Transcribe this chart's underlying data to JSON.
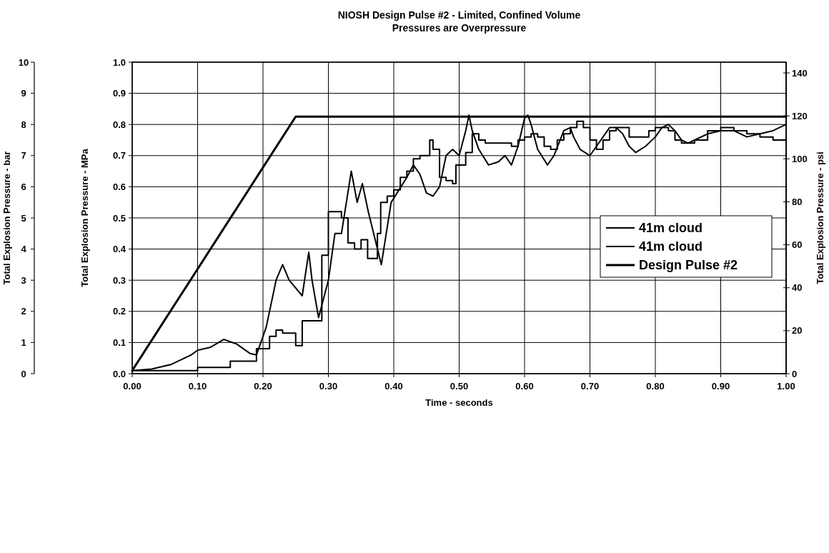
{
  "chart_data": {
    "type": "line",
    "title": "NIOSH Design Pulse #2 - Limited, Confined Volume",
    "subtitle": "Pressures are Overpressure",
    "xlabel": "Time - seconds",
    "ylabel": "Total Explosion Pressure - MPa",
    "y3label": "Total Explosion Pressure - psi",
    "y2label": "Total Explosion Pressure - bar",
    "xlim": [
      0,
      1
    ],
    "xticks": [
      {
        "value": 0,
        "label": "0.00"
      },
      {
        "value": 0.1,
        "label": "0.10"
      },
      {
        "value": 0.2,
        "label": "0.20"
      },
      {
        "value": 0.3,
        "label": "0.30"
      },
      {
        "value": 0.4,
        "label": "0.40"
      },
      {
        "value": 0.5,
        "label": "0.50"
      },
      {
        "value": 0.6,
        "label": "0.60"
      },
      {
        "value": 0.7,
        "label": "0.70"
      },
      {
        "value": 0.8,
        "label": "0.80"
      },
      {
        "value": 0.9,
        "label": "0.90"
      },
      {
        "value": 1,
        "label": "1.00"
      }
    ],
    "ylim": [
      0,
      1
    ],
    "yticks": [
      {
        "value": 0,
        "label": "0.0"
      },
      {
        "value": 0.1,
        "label": "0.1"
      },
      {
        "value": 0.2,
        "label": "0.2"
      },
      {
        "value": 0.3,
        "label": "0.3"
      },
      {
        "value": 0.4,
        "label": "0.4"
      },
      {
        "value": 0.5,
        "label": "0.5"
      },
      {
        "value": 0.6,
        "label": "0.6"
      },
      {
        "value": 0.7,
        "label": "0.7"
      },
      {
        "value": 0.8,
        "label": "0.8"
      },
      {
        "value": 0.9,
        "label": "0.9"
      },
      {
        "value": 1,
        "label": "1.0"
      }
    ],
    "y3lim": [
      0,
      145
    ],
    "y3ticks": [
      0,
      20,
      40,
      60,
      80,
      100,
      120,
      140
    ],
    "y2lim": [
      0,
      10
    ],
    "y2ticks": [
      0,
      1,
      2,
      3,
      4,
      5,
      6,
      7,
      8,
      9,
      10
    ],
    "grid": true,
    "legend": "right",
    "line_style": "solid",
    "marker": "none",
    "series": [
      {
        "name": "41m cloud",
        "color": "#000000",
        "x": [
          0,
          0.03,
          0.06,
          0.09,
          0.1,
          0.12,
          0.14,
          0.16,
          0.18,
          0.19,
          0.205,
          0.22,
          0.23,
          0.24,
          0.26,
          0.27,
          0.275,
          0.285,
          0.3,
          0.31,
          0.32,
          0.335,
          0.344,
          0.352,
          0.361,
          0.381,
          0.396,
          0.405,
          0.42,
          0.43,
          0.44,
          0.45,
          0.46,
          0.47,
          0.48,
          0.49,
          0.5,
          0.51,
          0.515,
          0.52,
          0.53,
          0.545,
          0.56,
          0.57,
          0.58,
          0.59,
          0.6,
          0.605,
          0.61,
          0.62,
          0.635,
          0.645,
          0.66,
          0.67,
          0.675,
          0.685,
          0.7,
          0.71,
          0.73,
          0.74,
          0.75,
          0.76,
          0.77,
          0.785,
          0.8,
          0.81,
          0.82,
          0.83,
          0.84,
          0.85,
          0.86,
          0.88,
          0.9,
          0.92,
          0.94,
          0.96,
          0.98,
          1
        ],
        "values": [
          0.01,
          0.015,
          0.03,
          0.06,
          0.075,
          0.085,
          0.11,
          0.095,
          0.065,
          0.06,
          0.15,
          0.3,
          0.35,
          0.3,
          0.25,
          0.39,
          0.3,
          0.18,
          0.3,
          0.45,
          0.45,
          0.65,
          0.55,
          0.61,
          0.52,
          0.35,
          0.55,
          0.58,
          0.63,
          0.67,
          0.64,
          0.58,
          0.57,
          0.6,
          0.7,
          0.72,
          0.7,
          0.78,
          0.83,
          0.78,
          0.72,
          0.67,
          0.68,
          0.7,
          0.67,
          0.73,
          0.82,
          0.83,
          0.8,
          0.72,
          0.67,
          0.7,
          0.78,
          0.79,
          0.76,
          0.72,
          0.7,
          0.73,
          0.79,
          0.79,
          0.77,
          0.73,
          0.71,
          0.73,
          0.76,
          0.79,
          0.8,
          0.78,
          0.75,
          0.74,
          0.75,
          0.77,
          0.78,
          0.78,
          0.76,
          0.77,
          0.78,
          0.8
        ]
      },
      {
        "name": "41m cloud",
        "type": "step",
        "color": "#000000",
        "x": [
          0,
          0.1,
          0.15,
          0.19,
          0.21,
          0.22,
          0.23,
          0.25,
          0.26,
          0.29,
          0.3,
          0.32,
          0.33,
          0.34,
          0.35,
          0.36,
          0.375,
          0.38,
          0.39,
          0.4,
          0.41,
          0.42,
          0.43,
          0.44,
          0.455,
          0.46,
          0.47,
          0.48,
          0.49,
          0.495,
          0.51,
          0.52,
          0.53,
          0.54,
          0.58,
          0.59,
          0.6,
          0.61,
          0.62,
          0.63,
          0.64,
          0.65,
          0.66,
          0.67,
          0.68,
          0.69,
          0.7,
          0.71,
          0.72,
          0.73,
          0.74,
          0.76,
          0.79,
          0.8,
          0.82,
          0.83,
          0.84,
          0.86,
          0.88,
          0.9,
          0.92,
          0.94,
          0.96,
          0.98,
          1
        ],
        "values": [
          0.01,
          0.02,
          0.04,
          0.08,
          0.12,
          0.14,
          0.13,
          0.09,
          0.17,
          0.38,
          0.52,
          0.5,
          0.42,
          0.4,
          0.43,
          0.37,
          0.45,
          0.55,
          0.57,
          0.59,
          0.63,
          0.65,
          0.69,
          0.7,
          0.75,
          0.72,
          0.63,
          0.62,
          0.61,
          0.67,
          0.71,
          0.77,
          0.75,
          0.74,
          0.73,
          0.75,
          0.76,
          0.77,
          0.76,
          0.73,
          0.72,
          0.75,
          0.77,
          0.79,
          0.81,
          0.79,
          0.75,
          0.72,
          0.75,
          0.78,
          0.79,
          0.76,
          0.78,
          0.79,
          0.78,
          0.75,
          0.74,
          0.75,
          0.78,
          0.79,
          0.78,
          0.77,
          0.76,
          0.75,
          0.74
        ]
      },
      {
        "name": "Design Pulse #2",
        "color": "#000000",
        "x": [
          0,
          0.25,
          1
        ],
        "values": [
          0.01,
          0.825,
          0.825
        ]
      }
    ]
  }
}
